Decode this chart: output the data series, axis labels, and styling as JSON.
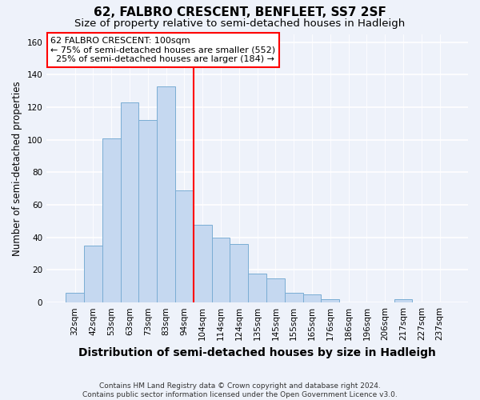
{
  "title": "62, FALBRO CRESCENT, BENFLEET, SS7 2SF",
  "subtitle": "Size of property relative to semi-detached houses in Hadleigh",
  "xlabel": "Distribution of semi-detached houses by size in Hadleigh",
  "ylabel": "Number of semi-detached properties",
  "categories": [
    "32sqm",
    "42sqm",
    "53sqm",
    "63sqm",
    "73sqm",
    "83sqm",
    "94sqm",
    "104sqm",
    "114sqm",
    "124sqm",
    "135sqm",
    "145sqm",
    "155sqm",
    "165sqm",
    "176sqm",
    "186sqm",
    "196sqm",
    "206sqm",
    "217sqm",
    "227sqm",
    "237sqm"
  ],
  "values": [
    6,
    35,
    101,
    123,
    112,
    133,
    69,
    48,
    40,
    36,
    18,
    15,
    6,
    5,
    2,
    0,
    0,
    0,
    2,
    0,
    0
  ],
  "bar_color": "#c5d8f0",
  "bar_edge_color": "#7aadd4",
  "vline_x_index": 6.5,
  "annotation_line1": "62 FALBRO CRESCENT: 100sqm",
  "annotation_line2": "← 75% of semi-detached houses are smaller (552)",
  "annotation_line3": "  25% of semi-detached houses are larger (184) →",
  "ylim": [
    0,
    165
  ],
  "yticks": [
    0,
    20,
    40,
    60,
    80,
    100,
    120,
    140,
    160
  ],
  "footer1": "Contains HM Land Registry data © Crown copyright and database right 2024.",
  "footer2": "Contains public sector information licensed under the Open Government Licence v3.0.",
  "bg_color": "#eef2fa",
  "grid_color": "#ffffff",
  "title_fontsize": 11,
  "subtitle_fontsize": 9.5,
  "xlabel_fontsize": 10,
  "ylabel_fontsize": 8.5,
  "tick_fontsize": 7.5,
  "annot_fontsize": 8,
  "footer_fontsize": 6.5
}
